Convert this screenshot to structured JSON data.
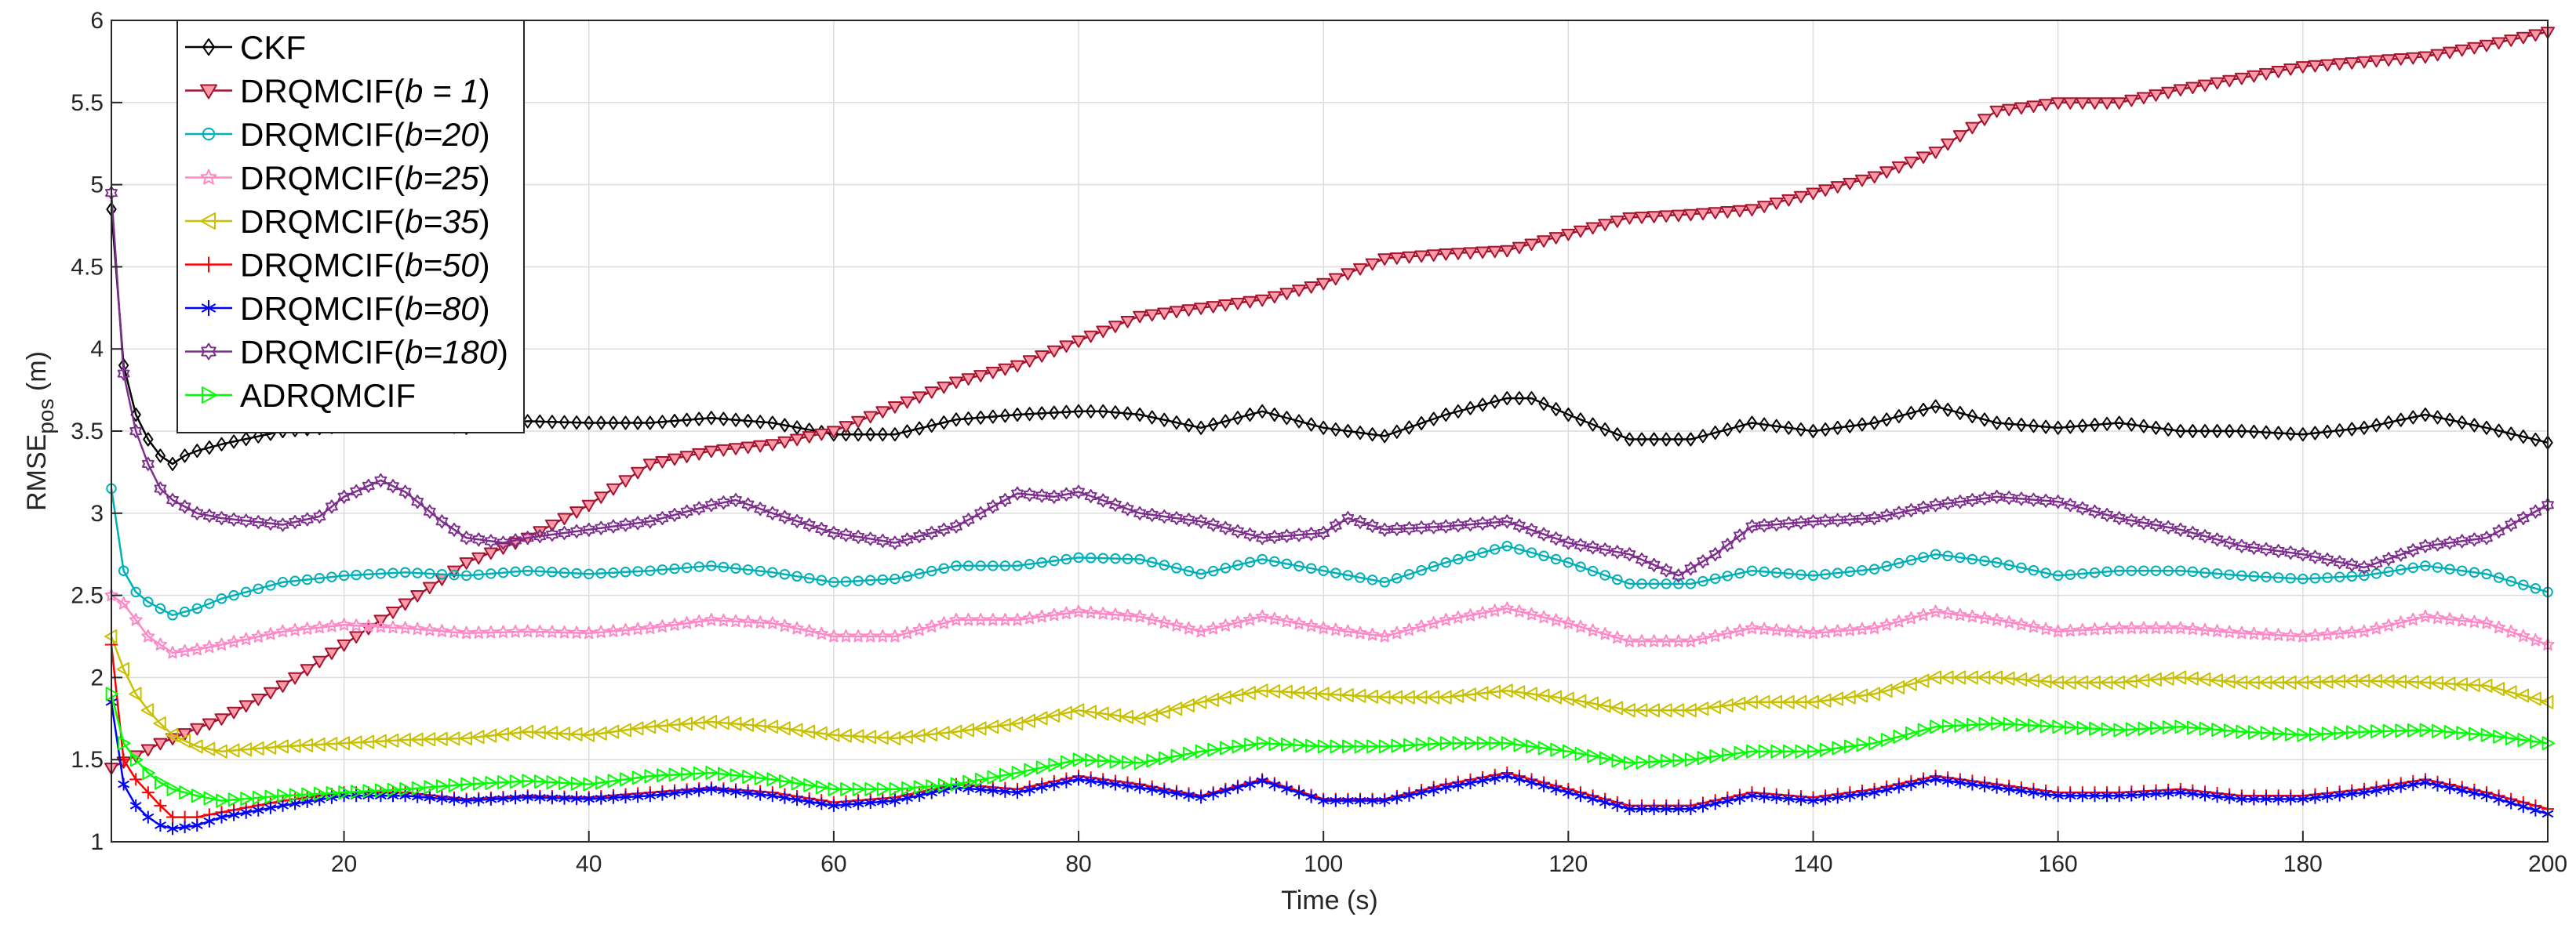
{
  "chart_data": {
    "type": "line",
    "title": "",
    "xlabel": "Time (s)",
    "ylabel": {
      "main": "RMSE",
      "subscript": "pos",
      "unit": " (m)"
    },
    "xlim": [
      1,
      200
    ],
    "ylim": [
      1,
      6
    ],
    "xticks": [
      20,
      40,
      60,
      80,
      100,
      120,
      140,
      160,
      180,
      200
    ],
    "yticks": [
      1,
      1.5,
      2,
      2.5,
      3,
      3.5,
      4,
      4.5,
      5,
      5.5,
      6
    ],
    "grid": true,
    "legend_position": "top-left",
    "series": [
      {
        "name": "CKF",
        "legend": {
          "main": "CKF",
          "italic": "",
          "tail": ""
        },
        "color": "#000000",
        "marker": "diamond",
        "x": [
          1,
          2,
          3,
          4,
          5,
          6,
          7,
          8,
          10,
          15,
          20,
          25,
          30,
          35,
          40,
          45,
          50,
          55,
          60,
          65,
          70,
          75,
          80,
          82,
          85,
          90,
          95,
          100,
          105,
          110,
          115,
          117,
          120,
          125,
          130,
          135,
          140,
          145,
          150,
          155,
          160,
          165,
          170,
          175,
          180,
          185,
          190,
          195,
          200
        ],
        "y": [
          4.85,
          3.9,
          3.6,
          3.45,
          3.35,
          3.3,
          3.35,
          3.38,
          3.42,
          3.5,
          3.53,
          3.55,
          3.52,
          3.56,
          3.55,
          3.55,
          3.58,
          3.55,
          3.48,
          3.48,
          3.57,
          3.6,
          3.62,
          3.62,
          3.6,
          3.52,
          3.62,
          3.52,
          3.47,
          3.6,
          3.7,
          3.7,
          3.6,
          3.45,
          3.45,
          3.55,
          3.5,
          3.55,
          3.65,
          3.55,
          3.52,
          3.55,
          3.5,
          3.5,
          3.48,
          3.52,
          3.6,
          3.52,
          3.43
        ]
      },
      {
        "name": "DRQMCIF(b = 1)",
        "legend": {
          "main": "DRQMCIF(",
          "italic": "b = 1",
          "tail": ")"
        },
        "color": "#a2142f",
        "fill": "#ff9aa6",
        "marker": "triangle-down",
        "x": [
          1,
          5,
          10,
          15,
          20,
          25,
          30,
          35,
          40,
          45,
          50,
          55,
          60,
          65,
          70,
          75,
          80,
          85,
          90,
          95,
          100,
          105,
          110,
          115,
          120,
          125,
          130,
          135,
          140,
          145,
          150,
          155,
          160,
          165,
          170,
          175,
          180,
          185,
          190,
          195,
          200
        ],
        "y": [
          1.45,
          1.6,
          1.75,
          1.95,
          2.2,
          2.45,
          2.7,
          2.85,
          3.05,
          3.3,
          3.38,
          3.42,
          3.5,
          3.65,
          3.8,
          3.9,
          4.05,
          4.2,
          4.25,
          4.3,
          4.4,
          4.55,
          4.58,
          4.6,
          4.7,
          4.8,
          4.82,
          4.85,
          4.95,
          5.05,
          5.2,
          5.45,
          5.5,
          5.5,
          5.58,
          5.65,
          5.72,
          5.75,
          5.78,
          5.85,
          5.93
        ]
      },
      {
        "name": "DRQMCIF(b=20)",
        "legend": {
          "main": "DRQMCIF(",
          "italic": "b=20",
          "tail": ")"
        },
        "color": "#00b0b8",
        "marker": "circle",
        "x": [
          1,
          2,
          3,
          4,
          5,
          6,
          8,
          10,
          15,
          20,
          25,
          30,
          35,
          40,
          45,
          50,
          55,
          60,
          65,
          70,
          75,
          80,
          85,
          90,
          95,
          100,
          105,
          110,
          115,
          120,
          125,
          130,
          135,
          140,
          145,
          150,
          155,
          160,
          165,
          170,
          175,
          180,
          185,
          190,
          195,
          200
        ],
        "y": [
          3.15,
          2.65,
          2.52,
          2.46,
          2.42,
          2.38,
          2.42,
          2.48,
          2.58,
          2.62,
          2.64,
          2.62,
          2.65,
          2.63,
          2.65,
          2.68,
          2.64,
          2.58,
          2.6,
          2.68,
          2.68,
          2.73,
          2.72,
          2.63,
          2.72,
          2.65,
          2.58,
          2.7,
          2.8,
          2.7,
          2.57,
          2.57,
          2.65,
          2.62,
          2.66,
          2.75,
          2.7,
          2.62,
          2.65,
          2.65,
          2.62,
          2.6,
          2.62,
          2.68,
          2.63,
          2.52
        ]
      },
      {
        "name": "DRQMCIF(b=25)",
        "legend": {
          "main": "DRQMCIF(",
          "italic": "b=25",
          "tail": ")"
        },
        "color": "#ff88c6",
        "marker": "star",
        "x": [
          1,
          2,
          3,
          4,
          5,
          6,
          8,
          10,
          15,
          20,
          25,
          30,
          35,
          40,
          45,
          50,
          55,
          60,
          65,
          70,
          75,
          80,
          85,
          90,
          95,
          100,
          105,
          110,
          115,
          120,
          125,
          130,
          135,
          140,
          145,
          150,
          155,
          160,
          165,
          170,
          175,
          180,
          185,
          190,
          195,
          200
        ],
        "y": [
          2.5,
          2.45,
          2.35,
          2.25,
          2.2,
          2.15,
          2.17,
          2.2,
          2.28,
          2.32,
          2.3,
          2.27,
          2.28,
          2.27,
          2.3,
          2.35,
          2.33,
          2.25,
          2.25,
          2.35,
          2.35,
          2.4,
          2.37,
          2.28,
          2.37,
          2.3,
          2.25,
          2.35,
          2.42,
          2.33,
          2.22,
          2.22,
          2.3,
          2.27,
          2.3,
          2.4,
          2.35,
          2.28,
          2.3,
          2.3,
          2.27,
          2.25,
          2.28,
          2.37,
          2.33,
          2.2
        ]
      },
      {
        "name": "DRQMCIF(b=35)",
        "legend": {
          "main": "DRQMCIF(",
          "italic": "b=35",
          "tail": ")"
        },
        "color": "#c8c000",
        "marker": "triangle-left",
        "x": [
          1,
          2,
          3,
          4,
          5,
          6,
          8,
          10,
          15,
          20,
          25,
          30,
          35,
          40,
          45,
          50,
          55,
          60,
          65,
          70,
          75,
          80,
          85,
          90,
          95,
          100,
          105,
          110,
          115,
          120,
          125,
          130,
          135,
          140,
          145,
          150,
          155,
          160,
          165,
          170,
          175,
          180,
          185,
          190,
          195,
          200
        ],
        "y": [
          2.25,
          2.05,
          1.9,
          1.8,
          1.72,
          1.65,
          1.58,
          1.55,
          1.58,
          1.6,
          1.62,
          1.63,
          1.67,
          1.65,
          1.7,
          1.73,
          1.7,
          1.65,
          1.63,
          1.67,
          1.72,
          1.8,
          1.75,
          1.85,
          1.92,
          1.9,
          1.88,
          1.88,
          1.92,
          1.87,
          1.8,
          1.8,
          1.85,
          1.85,
          1.9,
          2.0,
          2.0,
          1.97,
          1.97,
          2.0,
          1.97,
          1.97,
          1.98,
          1.97,
          1.95,
          1.85
        ]
      },
      {
        "name": "DRQMCIF(b=50)",
        "legend": {
          "main": "DRQMCIF(",
          "italic": "b=50",
          "tail": ")"
        },
        "color": "#ff0000",
        "marker": "plus",
        "x": [
          1,
          2,
          3,
          4,
          5,
          6,
          8,
          10,
          15,
          20,
          25,
          30,
          35,
          40,
          45,
          50,
          55,
          60,
          65,
          70,
          75,
          80,
          85,
          90,
          95,
          100,
          105,
          110,
          115,
          120,
          125,
          130,
          135,
          140,
          145,
          150,
          155,
          160,
          165,
          170,
          175,
          180,
          185,
          190,
          195,
          200
        ],
        "y": [
          2.2,
          1.5,
          1.38,
          1.3,
          1.22,
          1.15,
          1.15,
          1.18,
          1.25,
          1.3,
          1.3,
          1.26,
          1.28,
          1.27,
          1.3,
          1.33,
          1.3,
          1.24,
          1.27,
          1.35,
          1.32,
          1.4,
          1.35,
          1.28,
          1.38,
          1.26,
          1.26,
          1.35,
          1.42,
          1.32,
          1.22,
          1.22,
          1.3,
          1.27,
          1.32,
          1.4,
          1.35,
          1.3,
          1.3,
          1.32,
          1.28,
          1.28,
          1.32,
          1.38,
          1.3,
          1.2
        ]
      },
      {
        "name": "DRQMCIF(b=80)",
        "legend": {
          "main": "DRQMCIF(",
          "italic": "b=80",
          "tail": ")"
        },
        "color": "#0000ff",
        "marker": "asterisk",
        "x": [
          1,
          2,
          3,
          4,
          5,
          6,
          8,
          10,
          15,
          20,
          25,
          30,
          35,
          40,
          45,
          50,
          55,
          60,
          65,
          70,
          75,
          80,
          85,
          90,
          95,
          100,
          105,
          110,
          115,
          120,
          125,
          130,
          135,
          140,
          145,
          150,
          155,
          160,
          165,
          170,
          175,
          180,
          185,
          190,
          195,
          200
        ],
        "y": [
          1.85,
          1.35,
          1.22,
          1.15,
          1.1,
          1.08,
          1.1,
          1.15,
          1.22,
          1.28,
          1.28,
          1.25,
          1.27,
          1.26,
          1.28,
          1.32,
          1.28,
          1.22,
          1.25,
          1.33,
          1.3,
          1.38,
          1.33,
          1.27,
          1.37,
          1.25,
          1.25,
          1.33,
          1.4,
          1.3,
          1.2,
          1.2,
          1.28,
          1.25,
          1.3,
          1.38,
          1.33,
          1.28,
          1.28,
          1.3,
          1.26,
          1.26,
          1.3,
          1.36,
          1.28,
          1.17
        ]
      },
      {
        "name": "DRQMCIF(b=180)",
        "legend": {
          "main": "DRQMCIF(",
          "italic": "b=180",
          "tail": ")"
        },
        "color": "#7e2f8e",
        "marker": "hexagram",
        "x": [
          1,
          2,
          3,
          4,
          5,
          6,
          8,
          10,
          15,
          18,
          20,
          23,
          25,
          28,
          30,
          33,
          35,
          40,
          45,
          50,
          52,
          55,
          60,
          65,
          70,
          75,
          78,
          80,
          85,
          90,
          95,
          100,
          102,
          105,
          110,
          115,
          120,
          125,
          129,
          132,
          135,
          140,
          145,
          150,
          155,
          160,
          165,
          170,
          175,
          180,
          185,
          190,
          195,
          200
        ],
        "y": [
          4.95,
          3.85,
          3.5,
          3.3,
          3.15,
          3.08,
          3.0,
          2.97,
          2.93,
          2.98,
          3.1,
          3.2,
          3.13,
          2.95,
          2.85,
          2.82,
          2.85,
          2.9,
          2.95,
          3.05,
          3.08,
          3.0,
          2.88,
          2.82,
          2.92,
          3.12,
          3.1,
          3.13,
          3.0,
          2.95,
          2.85,
          2.88,
          2.97,
          2.9,
          2.92,
          2.95,
          2.82,
          2.75,
          2.62,
          2.75,
          2.92,
          2.95,
          2.97,
          3.05,
          3.1,
          3.07,
          2.97,
          2.9,
          2.8,
          2.75,
          2.67,
          2.8,
          2.85,
          3.05
        ]
      },
      {
        "name": "ADRQMCIF",
        "legend": {
          "main": "ADRQMCIF",
          "italic": "",
          "tail": ""
        },
        "color": "#00ff00",
        "marker": "triangle-right",
        "x": [
          1,
          2,
          3,
          4,
          5,
          6,
          8,
          10,
          15,
          20,
          25,
          30,
          35,
          40,
          45,
          50,
          55,
          60,
          65,
          70,
          75,
          80,
          85,
          90,
          95,
          100,
          105,
          110,
          115,
          120,
          125,
          130,
          135,
          140,
          145,
          150,
          155,
          160,
          165,
          170,
          175,
          180,
          185,
          190,
          195,
          200
        ],
        "y": [
          1.9,
          1.6,
          1.5,
          1.42,
          1.36,
          1.32,
          1.28,
          1.25,
          1.28,
          1.3,
          1.32,
          1.35,
          1.37,
          1.35,
          1.4,
          1.42,
          1.38,
          1.32,
          1.32,
          1.35,
          1.42,
          1.5,
          1.48,
          1.55,
          1.6,
          1.58,
          1.58,
          1.6,
          1.6,
          1.55,
          1.48,
          1.5,
          1.55,
          1.55,
          1.6,
          1.7,
          1.72,
          1.7,
          1.68,
          1.7,
          1.67,
          1.65,
          1.67,
          1.68,
          1.65,
          1.6
        ]
      }
    ]
  }
}
